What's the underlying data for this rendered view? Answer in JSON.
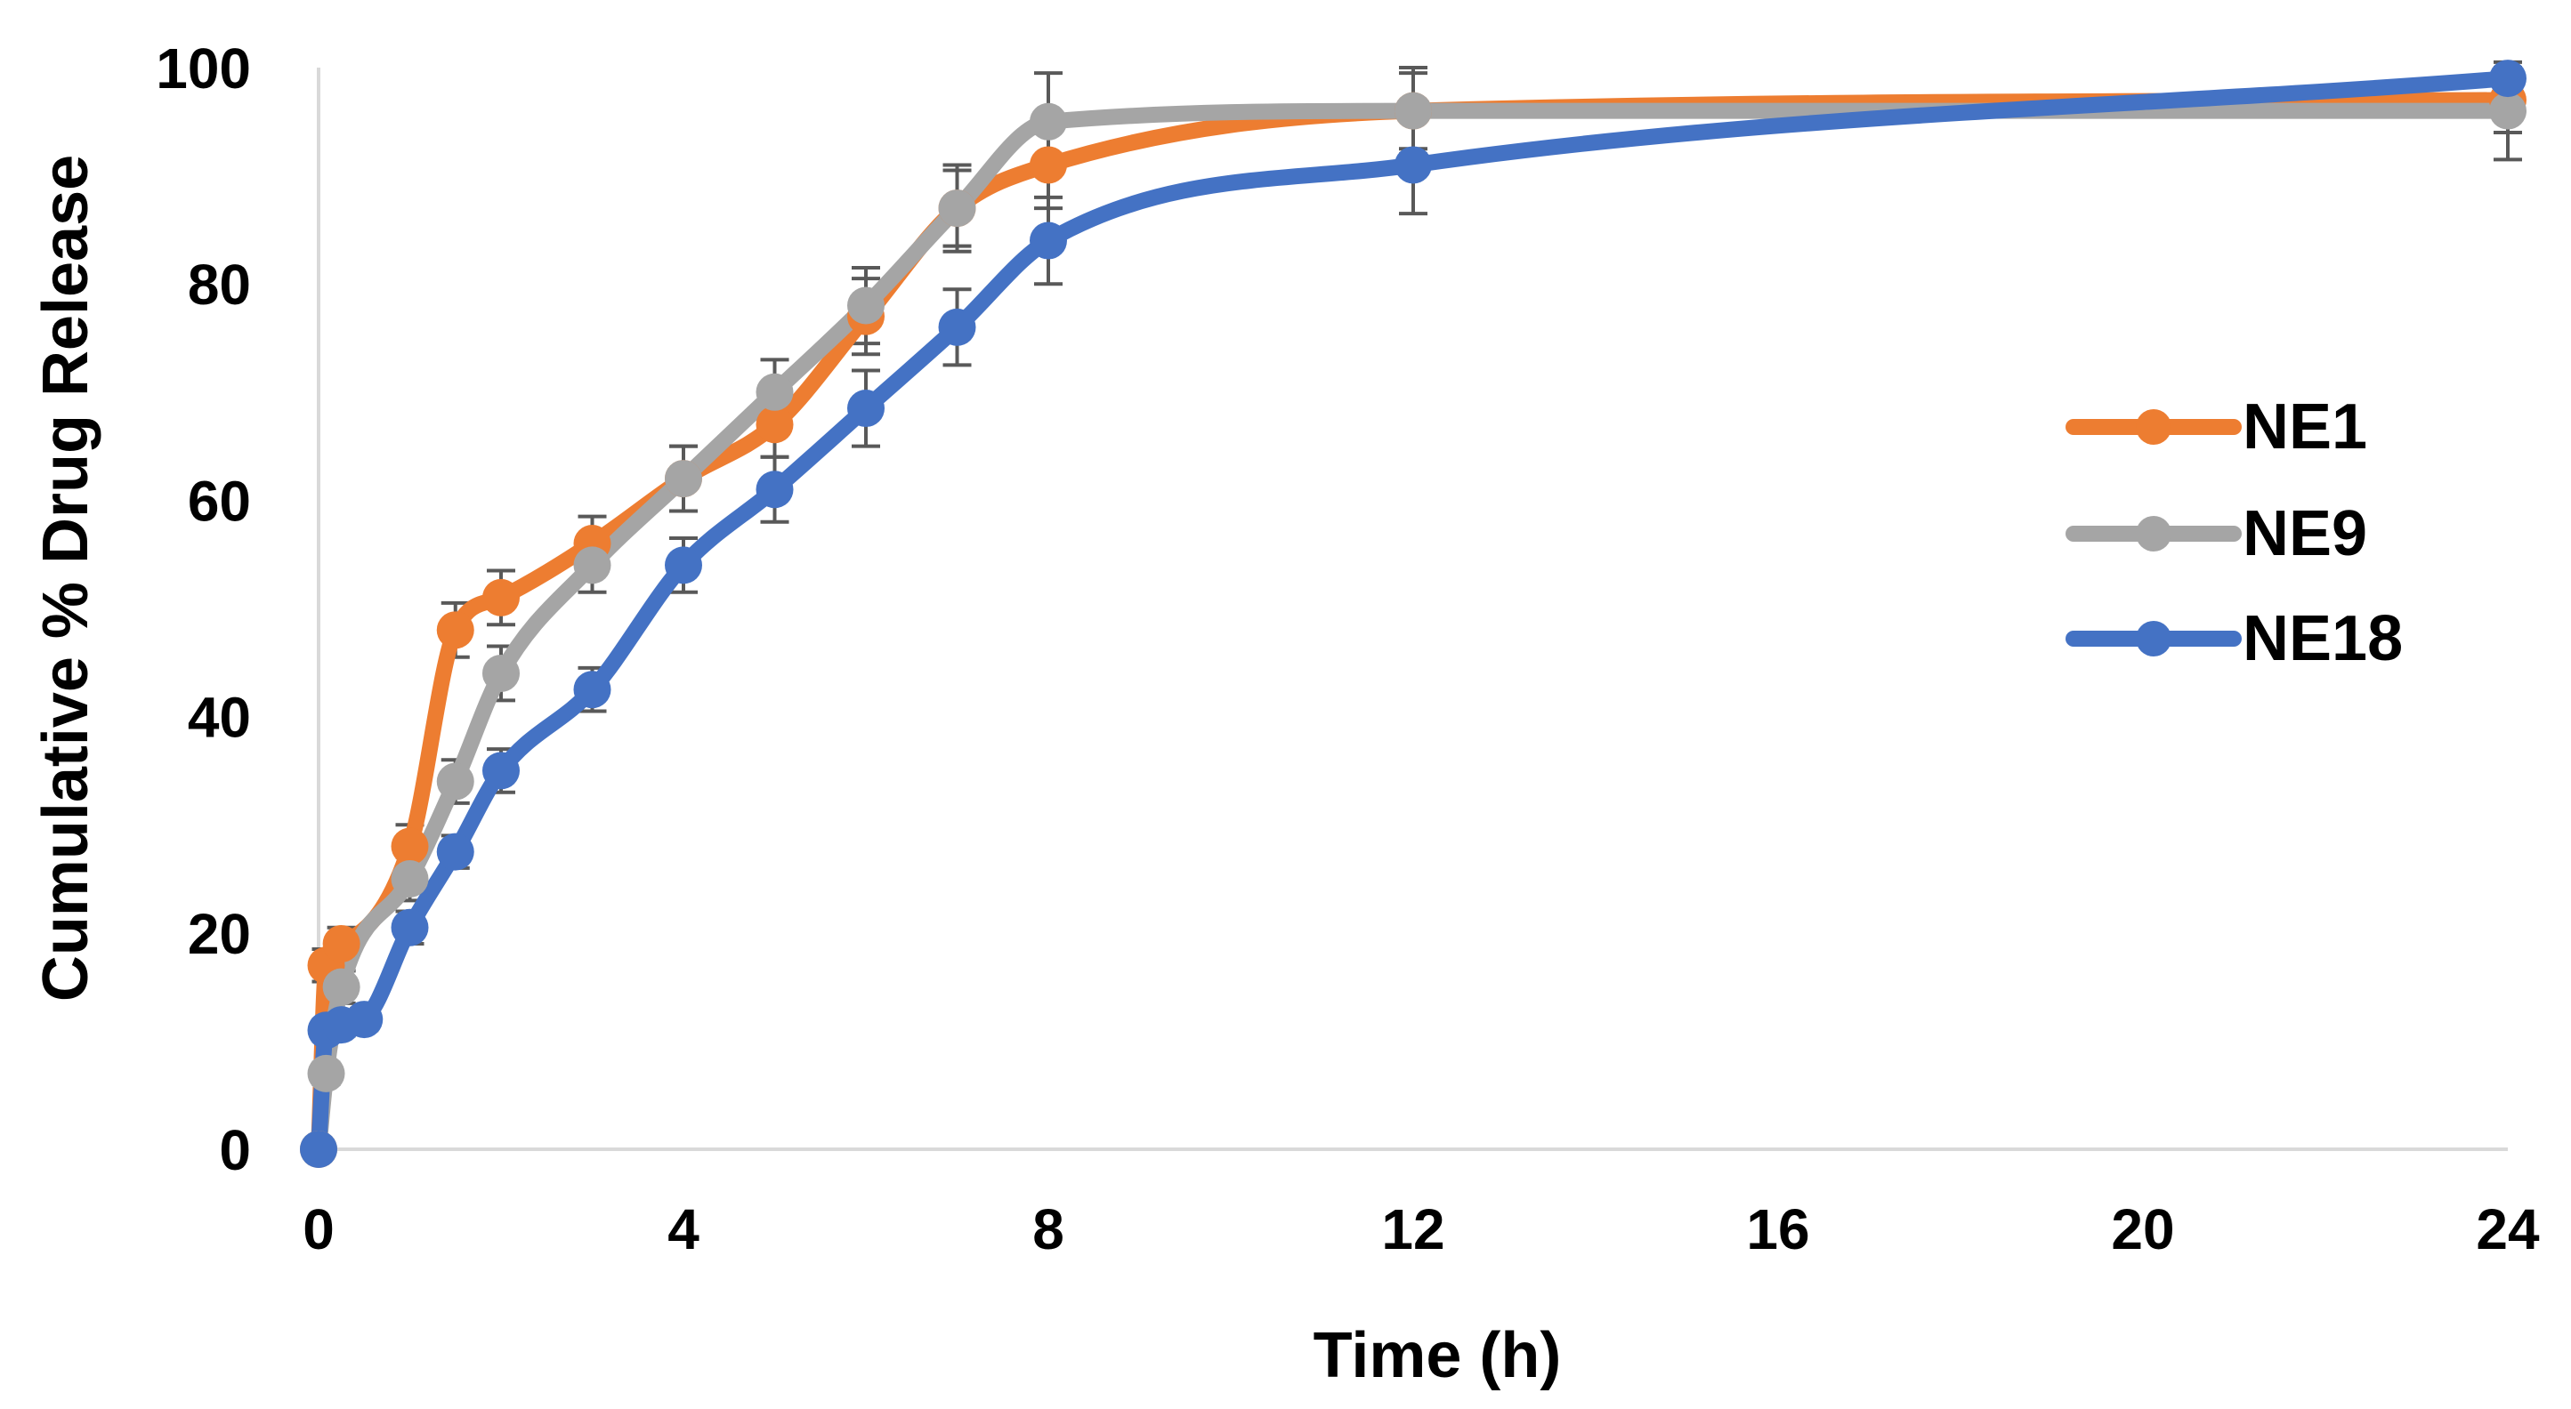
{
  "chart_data": {
    "type": "line",
    "title": "",
    "xlabel": "Time (h)",
    "ylabel": "Cumulative % Drug Release",
    "xlim": [
      0,
      24
    ],
    "ylim": [
      0,
      100
    ],
    "x_ticks": [
      0,
      4,
      8,
      12,
      16,
      20,
      24
    ],
    "y_ticks": [
      0,
      20,
      40,
      60,
      80,
      100
    ],
    "grid": false,
    "smooth": true,
    "legend_position": "right",
    "series": [
      {
        "name": "NE1",
        "color": "#ED7D31",
        "x": [
          0,
          0.083,
          0.25,
          1,
          1.5,
          2,
          3,
          4,
          5,
          6,
          7,
          8,
          12,
          24
        ],
        "values": [
          0,
          17,
          19,
          28,
          48,
          51,
          56,
          62,
          67,
          77,
          87,
          91,
          96,
          97
        ],
        "errors": [
          0,
          1.5,
          1.5,
          2,
          2.5,
          2.5,
          2.5,
          3,
          3,
          3.5,
          3.5,
          4,
          4,
          3
        ]
      },
      {
        "name": "NE9",
        "color": "#A5A5A5",
        "x": [
          0,
          0.083,
          0.25,
          1,
          1.5,
          2,
          3,
          4,
          5,
          6,
          7,
          8,
          12,
          24
        ],
        "values": [
          0,
          7,
          15,
          25,
          34,
          44,
          54,
          62,
          70,
          78,
          87,
          95,
          96,
          96
        ],
        "errors": [
          0,
          1,
          1.5,
          2,
          2,
          2.5,
          2.5,
          3,
          3,
          3.5,
          4,
          4.5,
          3.5,
          4.5
        ]
      },
      {
        "name": "NE18",
        "color": "#4472C4",
        "x": [
          0,
          0.083,
          0.25,
          0.5,
          1,
          1.5,
          2,
          3,
          4,
          5,
          6,
          7,
          8,
          12,
          24
        ],
        "values": [
          0,
          11,
          11.5,
          12,
          20.5,
          27.5,
          35,
          42.5,
          54,
          61,
          68.5,
          76,
          84,
          91,
          99
        ],
        "errors": [
          0,
          1,
          1,
          1,
          1.5,
          1.5,
          2,
          2,
          2.5,
          3,
          3.5,
          3.5,
          4,
          4.5,
          0.5
        ]
      }
    ]
  }
}
